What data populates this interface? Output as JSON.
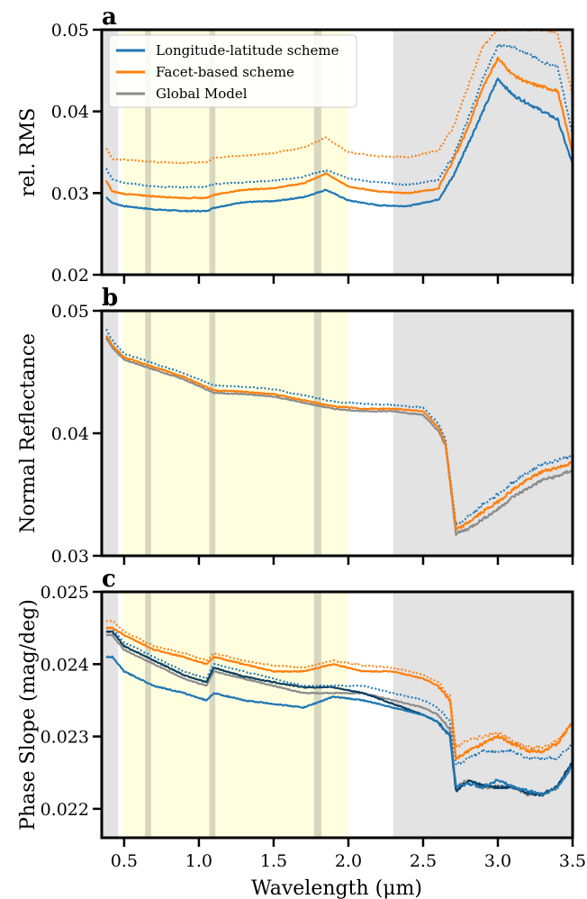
{
  "colors": {
    "lonlat": "#1f77b4",
    "facet": "#ff7f0e",
    "global": "#8c8c8c",
    "global_dark": "#0b3f63",
    "overlap_facet_global": "#a0521a",
    "yellow_band": "#ffffe0",
    "grey_region": "#e3e3e3",
    "absorption_band": "#c8c8b4"
  },
  "figure": {
    "xlabel": "Wavelength (μm)"
  },
  "chart_data": [
    {
      "type": "line",
      "panel": "a",
      "ylabel": "rel. RMS",
      "xlim": [
        0.35,
        3.5
      ],
      "ylim": [
        0.02,
        0.05
      ],
      "xticks": [
        0.5,
        1.0,
        1.5,
        2.0,
        2.5,
        3.0,
        3.5
      ],
      "xtick_labels": [
        "",
        "",
        "",
        "",
        "",
        "",
        ""
      ],
      "yticks": [
        0.02,
        0.03,
        0.04,
        0.05
      ],
      "ytick_labels": [
        "0.02",
        "0.03",
        "0.04",
        "0.05"
      ],
      "legend": {
        "position": "top-left",
        "entries": [
          {
            "label": "Longitude-latitude scheme",
            "color_key": "lonlat"
          },
          {
            "label": "Facet-based scheme",
            "color_key": "facet"
          },
          {
            "label": "Global Model",
            "color_key": "global"
          }
        ]
      },
      "shaded_regions": {
        "grey": [
          [
            0.35,
            0.46
          ],
          [
            2.3,
            3.5
          ]
        ],
        "yellow": [
          [
            0.49,
            2.0
          ]
        ],
        "bands": [
          [
            0.64,
            0.68
          ],
          [
            1.07,
            1.11
          ],
          [
            1.77,
            1.82
          ]
        ]
      },
      "series": [
        {
          "color_key": "lonlat",
          "style": "solid",
          "x": [
            0.38,
            0.42,
            0.5,
            0.7,
            0.9,
            1.05,
            1.1,
            1.3,
            1.5,
            1.7,
            1.85,
            2.0,
            2.2,
            2.4,
            2.6,
            2.7,
            2.8,
            2.9,
            3.0,
            3.1,
            3.2,
            3.3,
            3.4,
            3.5
          ],
          "y": [
            0.0295,
            0.0288,
            0.0284,
            0.028,
            0.0278,
            0.0278,
            0.0282,
            0.0289,
            0.029,
            0.0295,
            0.0304,
            0.0291,
            0.0285,
            0.0284,
            0.0292,
            0.032,
            0.036,
            0.04,
            0.044,
            0.042,
            0.041,
            0.04,
            0.039,
            0.0335
          ]
        },
        {
          "color_key": "lonlat",
          "style": "dotted",
          "x": [
            0.38,
            0.42,
            0.5,
            0.7,
            0.9,
            1.05,
            1.1,
            1.3,
            1.5,
            1.7,
            1.85,
            2.0,
            2.2,
            2.4,
            2.6,
            2.7,
            2.8,
            2.9,
            3.0,
            3.1,
            3.2,
            3.3,
            3.4,
            3.5
          ],
          "y": [
            0.033,
            0.0317,
            0.0313,
            0.0308,
            0.0307,
            0.0308,
            0.0311,
            0.0313,
            0.0315,
            0.032,
            0.0328,
            0.0318,
            0.0313,
            0.031,
            0.0316,
            0.0345,
            0.039,
            0.044,
            0.048,
            0.048,
            0.047,
            0.046,
            0.0455,
            0.037
          ]
        },
        {
          "color_key": "facet",
          "style": "solid",
          "x": [
            0.38,
            0.42,
            0.5,
            0.7,
            0.9,
            1.05,
            1.1,
            1.3,
            1.5,
            1.7,
            1.85,
            2.0,
            2.2,
            2.4,
            2.6,
            2.7,
            2.8,
            2.9,
            3.0,
            3.1,
            3.2,
            3.3,
            3.4,
            3.5
          ],
          "y": [
            0.0315,
            0.0302,
            0.0299,
            0.0296,
            0.0294,
            0.0294,
            0.0298,
            0.0304,
            0.0306,
            0.0312,
            0.0324,
            0.0308,
            0.0302,
            0.03,
            0.0305,
            0.034,
            0.038,
            0.043,
            0.0465,
            0.0445,
            0.0435,
            0.043,
            0.0425,
            0.035
          ]
        },
        {
          "color_key": "facet",
          "style": "dotted",
          "x": [
            0.38,
            0.42,
            0.5,
            0.7,
            0.9,
            1.05,
            1.1,
            1.3,
            1.5,
            1.7,
            1.85,
            2.0,
            2.2,
            2.4,
            2.6,
            2.7,
            2.8,
            2.9,
            3.0,
            3.1,
            3.2,
            3.3,
            3.4,
            3.5
          ],
          "y": [
            0.0355,
            0.0342,
            0.0341,
            0.0338,
            0.0337,
            0.0338,
            0.0343,
            0.0346,
            0.0349,
            0.0356,
            0.0368,
            0.035,
            0.0345,
            0.0344,
            0.0352,
            0.038,
            0.043,
            0.048,
            0.05,
            0.05,
            0.05,
            0.05,
            0.0495,
            0.042
          ]
        }
      ]
    },
    {
      "type": "line",
      "panel": "b",
      "ylabel": "Normal Reflectance",
      "xlim": [
        0.35,
        3.5
      ],
      "ylim": [
        0.03,
        0.05
      ],
      "xticks": [
        0.5,
        1.0,
        1.5,
        2.0,
        2.5,
        3.0,
        3.5
      ],
      "xtick_labels": [
        "",
        "",
        "",
        "",
        "",
        "",
        ""
      ],
      "yticks": [
        0.03,
        0.04,
        0.05
      ],
      "ytick_labels": [
        "0.03",
        "0.04",
        "0.05"
      ],
      "shaded_regions": {
        "grey": [
          [
            0.35,
            0.46
          ],
          [
            2.3,
            3.5
          ]
        ],
        "yellow": [
          [
            0.49,
            2.0
          ]
        ],
        "bands": [
          [
            0.64,
            0.68
          ],
          [
            1.07,
            1.11
          ],
          [
            1.77,
            1.82
          ]
        ]
      },
      "series": [
        {
          "color_key": "global",
          "style": "solid",
          "x": [
            0.38,
            0.42,
            0.5,
            0.7,
            0.9,
            1.1,
            1.3,
            1.5,
            1.7,
            1.9,
            2.1,
            2.3,
            2.5,
            2.6,
            2.65,
            2.7,
            2.72,
            2.8,
            2.9,
            3.0,
            3.1,
            3.2,
            3.3,
            3.4,
            3.5
          ],
          "y": [
            0.0478,
            0.047,
            0.046,
            0.0452,
            0.0444,
            0.0433,
            0.0432,
            0.043,
            0.0425,
            0.042,
            0.0418,
            0.0418,
            0.0415,
            0.0402,
            0.039,
            0.034,
            0.0318,
            0.0322,
            0.033,
            0.0338,
            0.0348,
            0.0355,
            0.0362,
            0.0365,
            0.037
          ]
        },
        {
          "color_key": "lonlat",
          "style": "dotted",
          "x": [
            0.38,
            0.42,
            0.5,
            0.7,
            0.9,
            1.1,
            1.3,
            1.5,
            1.7,
            1.9,
            2.1,
            2.3,
            2.5,
            2.6,
            2.65,
            2.7,
            2.72,
            2.8,
            2.9,
            3.0,
            3.1,
            3.2,
            3.3,
            3.4,
            3.5
          ],
          "y": [
            0.0485,
            0.0476,
            0.0465,
            0.0457,
            0.0449,
            0.0439,
            0.0438,
            0.0436,
            0.0431,
            0.0426,
            0.0424,
            0.0423,
            0.0421,
            0.0408,
            0.0395,
            0.0345,
            0.0325,
            0.0332,
            0.0342,
            0.035,
            0.036,
            0.0368,
            0.0375,
            0.0378,
            0.0382
          ]
        },
        {
          "color_key": "facet",
          "style": "solid",
          "x": [
            0.38,
            0.42,
            0.5,
            0.7,
            0.9,
            1.1,
            1.3,
            1.5,
            1.7,
            1.9,
            2.1,
            2.3,
            2.5,
            2.6,
            2.65,
            2.7,
            2.72,
            2.8,
            2.9,
            3.0,
            3.1,
            3.2,
            3.3,
            3.4,
            3.5
          ],
          "y": [
            0.048,
            0.0472,
            0.0462,
            0.0454,
            0.0446,
            0.0435,
            0.0434,
            0.0432,
            0.0427,
            0.0422,
            0.042,
            0.042,
            0.0418,
            0.0405,
            0.0392,
            0.0342,
            0.0321,
            0.0327,
            0.0336,
            0.0344,
            0.0354,
            0.0362,
            0.0369,
            0.0372,
            0.0376
          ]
        }
      ]
    },
    {
      "type": "line",
      "panel": "c",
      "ylabel": "Phase Slope (mag/deg)",
      "xlim": [
        0.35,
        3.5
      ],
      "ylim": [
        0.0216,
        0.025
      ],
      "xticks": [
        0.5,
        1.0,
        1.5,
        2.0,
        2.5,
        3.0,
        3.5
      ],
      "xtick_labels": [
        "0.5",
        "1.0",
        "1.5",
        "2.0",
        "2.5",
        "3.0",
        "3.5"
      ],
      "yticks": [
        0.022,
        0.023,
        0.024,
        0.025
      ],
      "ytick_labels": [
        "0.022",
        "0.023",
        "0.024",
        "0.025"
      ],
      "shaded_regions": {
        "grey": [
          [
            0.35,
            0.46
          ],
          [
            2.3,
            3.5
          ]
        ],
        "yellow": [
          [
            0.49,
            2.0
          ]
        ],
        "bands": [
          [
            0.64,
            0.68
          ],
          [
            1.07,
            1.11
          ],
          [
            1.77,
            1.82
          ]
        ]
      },
      "series": [
        {
          "color_key": "global",
          "style": "solid",
          "x": [
            0.38,
            0.42,
            0.5,
            0.7,
            0.9,
            1.05,
            1.1,
            1.3,
            1.5,
            1.7,
            1.9,
            2.1,
            2.3,
            2.5,
            2.6,
            2.68,
            2.72,
            2.8,
            2.9,
            3.0,
            3.1,
            3.2,
            3.3,
            3.4,
            3.5
          ],
          "y": [
            0.0244,
            0.0244,
            0.0242,
            0.024,
            0.0238,
            0.0237,
            0.0239,
            0.0238,
            0.0237,
            0.0236,
            0.0236,
            0.0236,
            0.0235,
            0.0234,
            0.0233,
            0.0231,
            0.0223,
            0.0224,
            0.0223,
            0.0223,
            0.0223,
            0.0222,
            0.0222,
            0.0223,
            0.0226
          ]
        },
        {
          "color_key": "global_dark",
          "style": "solid",
          "x": [
            0.38,
            0.42,
            0.5,
            0.7,
            0.9,
            1.05,
            1.1,
            1.3,
            1.5,
            1.7,
            1.9,
            2.1,
            2.3,
            2.5,
            2.6,
            2.68,
            2.72,
            2.8,
            2.9,
            3.0,
            3.1,
            3.2,
            3.3,
            3.4,
            3.5
          ],
          "y": [
            0.02445,
            0.02445,
            0.02425,
            0.02405,
            0.02385,
            0.02375,
            0.02395,
            0.02383,
            0.02375,
            0.02368,
            0.02368,
            0.0236,
            0.02345,
            0.0233,
            0.0232,
            0.023,
            0.02225,
            0.02238,
            0.02232,
            0.0223,
            0.0223,
            0.02222,
            0.0222,
            0.02232,
            0.02265
          ]
        },
        {
          "color_key": "lonlat",
          "style": "solid",
          "x": [
            0.38,
            0.42,
            0.5,
            0.7,
            0.9,
            1.05,
            1.1,
            1.3,
            1.5,
            1.7,
            1.9,
            2.1,
            2.3,
            2.5,
            2.6,
            2.68,
            2.72,
            2.8,
            2.9,
            3.0,
            3.1,
            3.2,
            3.3,
            3.4,
            3.5
          ],
          "y": [
            0.0241,
            0.0241,
            0.0239,
            0.0237,
            0.0236,
            0.0235,
            0.0236,
            0.0235,
            0.02345,
            0.0234,
            0.02355,
            0.0235,
            0.0234,
            0.0233,
            0.0232,
            0.023,
            0.0223,
            0.02235,
            0.0223,
            0.0224,
            0.0223,
            0.02225,
            0.0222,
            0.0223,
            0.0226
          ]
        },
        {
          "color_key": "lonlat",
          "style": "dotted",
          "x": [
            0.38,
            0.42,
            0.5,
            0.7,
            0.9,
            1.05,
            1.1,
            1.3,
            1.5,
            1.7,
            1.9,
            2.1,
            2.3,
            2.5,
            2.6,
            2.68,
            2.72,
            2.8,
            2.9,
            3.0,
            3.1,
            3.2,
            3.3,
            3.4,
            3.5
          ],
          "y": [
            0.0245,
            0.0245,
            0.0243,
            0.0241,
            0.0239,
            0.0238,
            0.024,
            0.0239,
            0.0238,
            0.0237,
            0.0237,
            0.0237,
            0.0236,
            0.0235,
            0.0234,
            0.0232,
            0.0226,
            0.0227,
            0.0228,
            0.0228,
            0.0228,
            0.0227,
            0.0227,
            0.0227,
            0.0229
          ]
        },
        {
          "color_key": "facet",
          "style": "solid",
          "x": [
            0.38,
            0.42,
            0.5,
            0.7,
            0.9,
            1.05,
            1.1,
            1.3,
            1.5,
            1.7,
            1.9,
            2.1,
            2.3,
            2.5,
            2.6,
            2.68,
            2.72,
            2.8,
            2.9,
            3.0,
            3.1,
            3.2,
            3.3,
            3.4,
            3.5
          ],
          "y": [
            0.0245,
            0.0245,
            0.0244,
            0.0242,
            0.0241,
            0.024,
            0.0241,
            0.024,
            0.0239,
            0.0239,
            0.024,
            0.0239,
            0.0239,
            0.0238,
            0.0237,
            0.0235,
            0.0227,
            0.0228,
            0.0229,
            0.023,
            0.0229,
            0.0228,
            0.0228,
            0.0229,
            0.0232
          ]
        },
        {
          "color_key": "facet",
          "style": "dotted",
          "x": [
            0.38,
            0.42,
            0.5,
            0.7,
            0.9,
            1.05,
            1.1,
            1.3,
            1.5,
            1.7,
            1.9,
            2.1,
            2.3,
            2.5,
            2.6,
            2.68,
            2.72,
            2.8,
            2.9,
            3.0,
            3.1,
            3.2,
            3.3,
            3.4,
            3.5
          ],
          "y": [
            0.0246,
            0.0246,
            0.02445,
            0.02425,
            0.02415,
            0.02405,
            0.02415,
            0.02405,
            0.02398,
            0.02395,
            0.02405,
            0.02398,
            0.02395,
            0.02385,
            0.02375,
            0.02355,
            0.02285,
            0.02295,
            0.023,
            0.02305,
            0.02295,
            0.02285,
            0.02285,
            0.02295,
            0.0232
          ]
        }
      ]
    }
  ]
}
